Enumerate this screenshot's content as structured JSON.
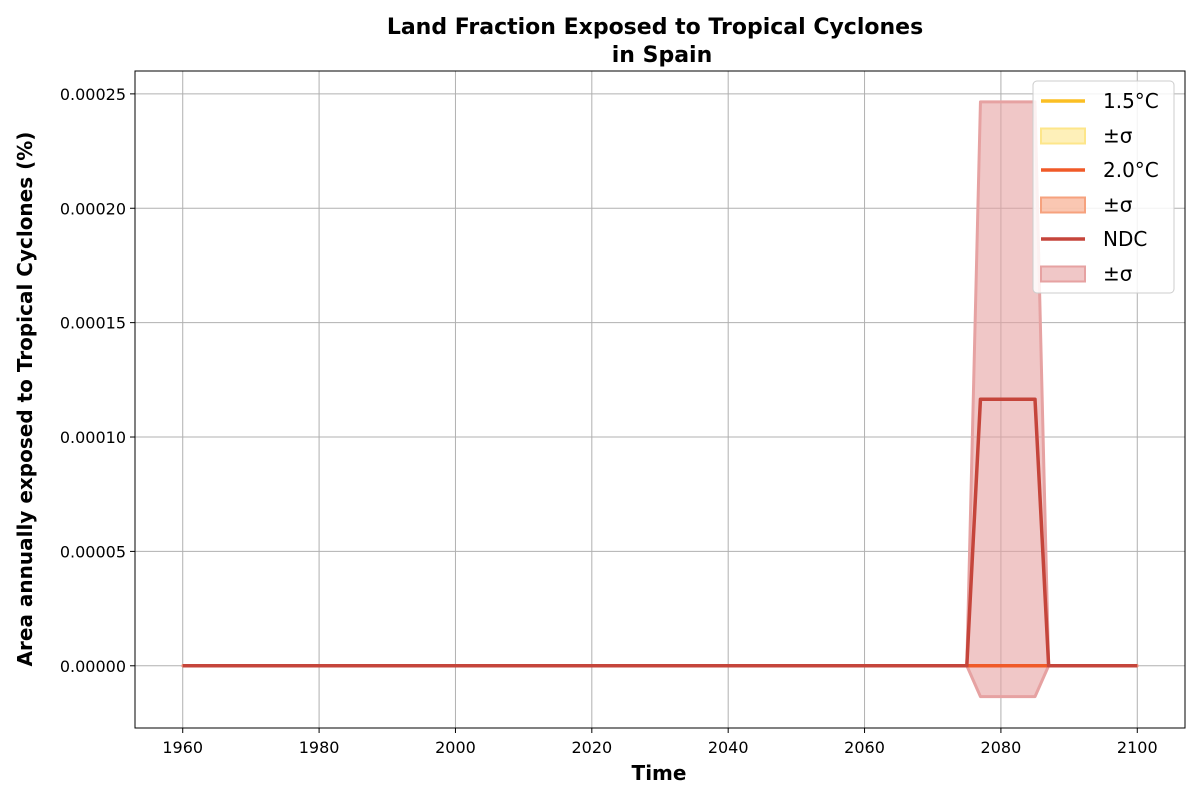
{
  "chart_data": {
    "type": "line",
    "title": "Land Fraction Exposed to Tropical Cyclones",
    "subtitle": "in Spain",
    "xlabel": "Time",
    "ylabel": "Area annually exposed to Tropical Cyclones (%)",
    "xlim": [
      1953,
      2107
    ],
    "ylim": [
      -2.72e-05,
      0.00026
    ],
    "xticks": [
      1960,
      1980,
      2000,
      2020,
      2040,
      2060,
      2080,
      2100
    ],
    "yticks": [
      0,
      5e-05,
      0.0001,
      0.00015,
      0.0002,
      0.00025
    ],
    "ytick_labels": [
      "0.00000",
      "0.00005",
      "0.00010",
      "0.00015",
      "0.00020",
      "0.00025"
    ],
    "grid": true,
    "legend_position": "top-right",
    "series": [
      {
        "name": "1.5°C",
        "band_name": "±σ",
        "color": "#fbbf24",
        "band_color": "#fde68a",
        "x": [
          1960,
          2100
        ],
        "y": [
          0,
          0
        ],
        "lower": [
          0,
          0
        ],
        "upper": [
          0,
          0
        ]
      },
      {
        "name": "2.0°C",
        "band_name": "±σ",
        "color": "#f05a28",
        "band_color": "#f6a27e",
        "x": [
          1960,
          2075,
          2077,
          2085,
          2087,
          2100
        ],
        "y": [
          0,
          0,
          0,
          0,
          0,
          0
        ],
        "lower": [
          0,
          0,
          0,
          0,
          0,
          0
        ],
        "upper": [
          0,
          0,
          0,
          0,
          0,
          0
        ]
      },
      {
        "name": "NDC",
        "band_name": "±σ",
        "color": "#c5453b",
        "band_color": "#e6a2a2",
        "x": [
          1960,
          2075,
          2077,
          2085,
          2087,
          2100
        ],
        "y": [
          0,
          0,
          0.0001165,
          0.0001165,
          0,
          0
        ],
        "lower": [
          0,
          0,
          -1.35e-05,
          -1.35e-05,
          0,
          0
        ],
        "upper": [
          0,
          0,
          0.0002465,
          0.0002465,
          0,
          0
        ]
      }
    ]
  }
}
